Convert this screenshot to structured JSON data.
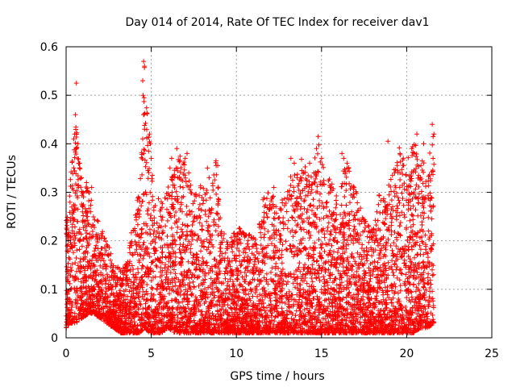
{
  "chart_data": {
    "type": "scatter",
    "title": "Day 014 of 2014, Rate Of TEC Index for receiver dav1",
    "xlabel": "GPS time / hours",
    "ylabel": "ROTI / TECUs",
    "xlim": [
      0,
      25
    ],
    "ylim": [
      0,
      0.6
    ],
    "xticks": [
      0,
      5,
      10,
      15,
      20,
      25
    ],
    "yticks": [
      0,
      0.1,
      0.2,
      0.3,
      0.4,
      0.5,
      0.6
    ],
    "grid": true,
    "marker": "+",
    "color": "#ff0000",
    "series": [
      {
        "name": "ROTI",
        "envelope": {
          "x": [
            0.0,
            0.2,
            0.4,
            0.6,
            0.8,
            1.0,
            1.3,
            1.6,
            2.0,
            2.4,
            2.8,
            3.2,
            3.6,
            4.0,
            4.3,
            4.6,
            4.9,
            5.2,
            5.6,
            6.0,
            6.4,
            6.8,
            7.2,
            7.6,
            8.0,
            8.4,
            8.8,
            9.2,
            9.6,
            10.0,
            10.4,
            10.8,
            11.2,
            11.6,
            12.0,
            12.4,
            12.8,
            13.2,
            13.6,
            14.0,
            14.4,
            14.8,
            15.2,
            15.6,
            16.0,
            16.4,
            16.8,
            17.2,
            17.6,
            18.0,
            18.4,
            18.8,
            19.2,
            19.6,
            20.0,
            20.4,
            20.8,
            21.2,
            21.6
          ],
          "max": [
            0.24,
            0.3,
            0.42,
            0.46,
            0.36,
            0.3,
            0.32,
            0.26,
            0.24,
            0.2,
            0.16,
            0.14,
            0.16,
            0.26,
            0.3,
            0.57,
            0.43,
            0.3,
            0.28,
            0.32,
            0.37,
            0.38,
            0.34,
            0.3,
            0.32,
            0.3,
            0.37,
            0.22,
            0.2,
            0.24,
            0.22,
            0.22,
            0.2,
            0.3,
            0.32,
            0.26,
            0.3,
            0.34,
            0.36,
            0.38,
            0.36,
            0.41,
            0.34,
            0.32,
            0.3,
            0.38,
            0.34,
            0.28,
            0.24,
            0.22,
            0.3,
            0.3,
            0.34,
            0.4,
            0.36,
            0.42,
            0.38,
            0.36,
            0.44
          ],
          "min": [
            0.02,
            0.03,
            0.03,
            0.03,
            0.04,
            0.04,
            0.05,
            0.05,
            0.04,
            0.03,
            0.02,
            0.01,
            0.01,
            0.01,
            0.01,
            0.02,
            0.01,
            0.01,
            0.01,
            0.02,
            0.01,
            0.01,
            0.01,
            0.01,
            0.01,
            0.01,
            0.01,
            0.01,
            0.01,
            0.01,
            0.01,
            0.01,
            0.01,
            0.01,
            0.01,
            0.01,
            0.01,
            0.01,
            0.01,
            0.01,
            0.01,
            0.01,
            0.01,
            0.01,
            0.01,
            0.01,
            0.01,
            0.01,
            0.01,
            0.01,
            0.01,
            0.01,
            0.01,
            0.01,
            0.01,
            0.01,
            0.02,
            0.02,
            0.03
          ]
        },
        "highlights": [
          [
            0.6,
            0.525
          ],
          [
            0.55,
            0.46
          ],
          [
            0.5,
            0.42
          ],
          [
            0.45,
            0.41
          ],
          [
            0.7,
            0.4
          ],
          [
            0.8,
            0.36
          ],
          [
            0.9,
            0.33
          ],
          [
            1.2,
            0.32
          ],
          [
            1.5,
            0.31
          ],
          [
            4.55,
            0.57
          ],
          [
            4.6,
            0.56
          ],
          [
            4.5,
            0.53
          ],
          [
            4.52,
            0.5
          ],
          [
            4.58,
            0.495
          ],
          [
            4.55,
            0.46
          ],
          [
            4.6,
            0.43
          ],
          [
            4.5,
            0.41
          ],
          [
            4.55,
            0.38
          ],
          [
            4.9,
            0.42
          ],
          [
            4.95,
            0.4
          ],
          [
            5.0,
            0.37
          ],
          [
            6.1,
            0.35
          ],
          [
            6.2,
            0.37
          ],
          [
            6.5,
            0.39
          ],
          [
            7.0,
            0.37
          ],
          [
            7.1,
            0.38
          ],
          [
            7.2,
            0.34
          ],
          [
            8.3,
            0.35
          ],
          [
            8.4,
            0.33
          ],
          [
            8.8,
            0.365
          ],
          [
            8.9,
            0.355
          ],
          [
            12.2,
            0.31
          ],
          [
            13.2,
            0.37
          ],
          [
            13.4,
            0.36
          ],
          [
            14.3,
            0.36
          ],
          [
            14.7,
            0.39
          ],
          [
            14.8,
            0.415
          ],
          [
            15.0,
            0.37
          ],
          [
            16.2,
            0.38
          ],
          [
            16.3,
            0.37
          ],
          [
            16.5,
            0.36
          ],
          [
            18.9,
            0.405
          ],
          [
            19.3,
            0.34
          ],
          [
            19.6,
            0.38
          ],
          [
            19.8,
            0.37
          ],
          [
            20.3,
            0.39
          ],
          [
            20.6,
            0.42
          ],
          [
            20.7,
            0.335
          ],
          [
            21.0,
            0.4
          ],
          [
            21.5,
            0.44
          ],
          [
            21.55,
            0.37
          ],
          [
            21.6,
            0.42
          ]
        ]
      }
    ]
  }
}
